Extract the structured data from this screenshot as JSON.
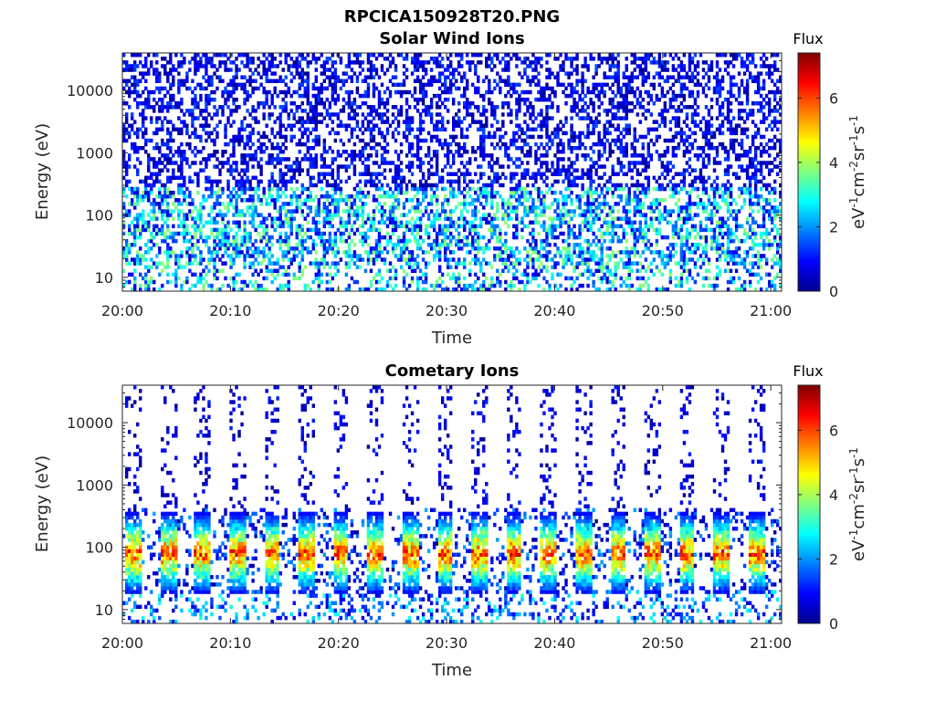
{
  "figure_title": "RPCICA150928T20.PNG",
  "colors": {
    "colormap": [
      "#00008f",
      "#0000ff",
      "#007fff",
      "#00ffff",
      "#7fff7f",
      "#ffff00",
      "#ff7f00",
      "#ff0000",
      "#7f0000"
    ]
  },
  "chart_data": [
    {
      "type": "heatmap",
      "title": "Solar Wind Ions",
      "xlabel": "Time",
      "ylabel": "Energy (eV)",
      "x_ticks": [
        "20:00",
        "20:10",
        "20:20",
        "20:30",
        "20:40",
        "20:50",
        "21:00"
      ],
      "y_ticks": [
        "10",
        "100",
        "1000",
        "10000"
      ],
      "y_scale": "log",
      "ylim": [
        6,
        40000
      ],
      "xlim_minutes": [
        0,
        61
      ],
      "colorbar": {
        "label": "Flux",
        "axis_label": "eV-1cm-2sr-1s-1",
        "ticks": [
          "0",
          "2",
          "4",
          "6"
        ],
        "range": [
          0,
          7.4
        ]
      },
      "features": {
        "background_max_flux": 1.5,
        "low_energy_band_ev": [
          20,
          300
        ],
        "low_energy_band_max_flux": 3.5
      }
    },
    {
      "type": "heatmap",
      "title": "Cometary Ions",
      "xlabel": "Time",
      "ylabel": "Energy (eV)",
      "x_ticks": [
        "20:00",
        "20:10",
        "20:20",
        "20:30",
        "20:40",
        "20:50",
        "21:00"
      ],
      "y_ticks": [
        "10",
        "100",
        "1000",
        "10000"
      ],
      "y_scale": "log",
      "ylim": [
        6,
        40000
      ],
      "xlim_minutes": [
        0,
        61
      ],
      "colorbar": {
        "label": "Flux",
        "axis_label": "eV-1cm-2sr-1s-1",
        "ticks": [
          "0",
          "2",
          "4",
          "6"
        ],
        "range": [
          0,
          7.4
        ]
      },
      "features": {
        "burst_period_minutes": 3.2,
        "burst_peak_energy_ev": 80,
        "burst_max_flux": 6.5
      }
    }
  ]
}
